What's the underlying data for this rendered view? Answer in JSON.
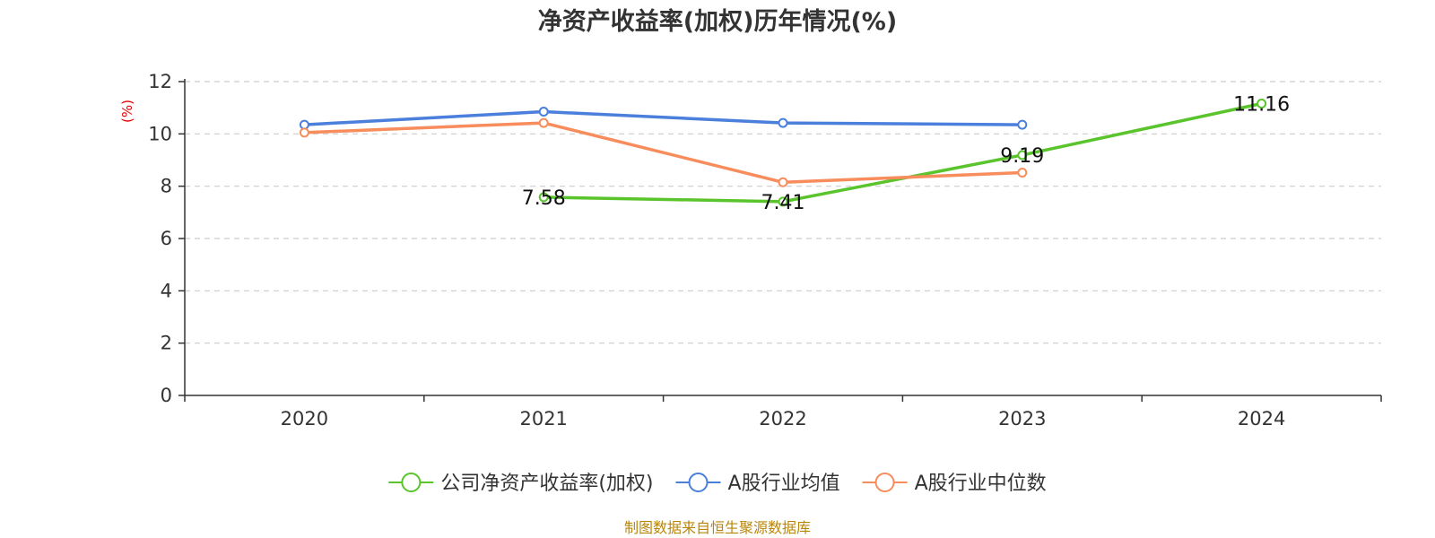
{
  "chart_data": {
    "type": "line",
    "title": "净资产收益率(加权)历年情况(%)",
    "ylabel": "(%)",
    "xlabel": "",
    "categories": [
      "2020",
      "2021",
      "2022",
      "2023",
      "2024"
    ],
    "ylim": [
      0,
      12
    ],
    "yticks": [
      0,
      2,
      4,
      6,
      8,
      10,
      12
    ],
    "grid": "dashed horizontal",
    "legend_position": "bottom",
    "series": [
      {
        "name": "公司净资产收益率(加权)",
        "color": "#5ac42c",
        "values": [
          null,
          7.58,
          7.41,
          9.19,
          11.16
        ],
        "labels": [
          null,
          "7.58",
          "7.41",
          "9.19",
          "11.16"
        ]
      },
      {
        "name": "A股行业均值",
        "color": "#4a7fdb",
        "values": [
          10.35,
          10.85,
          10.42,
          10.35,
          null
        ],
        "labels": [
          null,
          null,
          null,
          null,
          null
        ]
      },
      {
        "name": "A股行业中位数",
        "color": "#f78c5c",
        "values": [
          10.05,
          10.42,
          8.15,
          8.52,
          null
        ],
        "labels": [
          null,
          null,
          null,
          null,
          null
        ]
      }
    ],
    "source": "制图数据来自恒生聚源数据库"
  }
}
